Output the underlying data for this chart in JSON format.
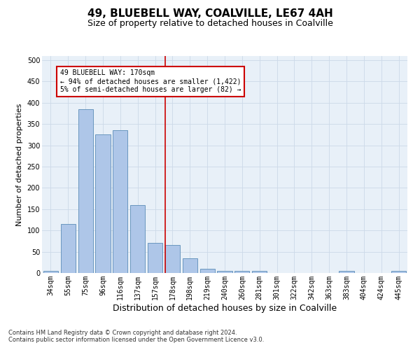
{
  "title": "49, BLUEBELL WAY, COALVILLE, LE67 4AH",
  "subtitle": "Size of property relative to detached houses in Coalville",
  "xlabel": "Distribution of detached houses by size in Coalville",
  "ylabel": "Number of detached properties",
  "categories": [
    "34sqm",
    "55sqm",
    "75sqm",
    "96sqm",
    "116sqm",
    "137sqm",
    "157sqm",
    "178sqm",
    "198sqm",
    "219sqm",
    "240sqm",
    "260sqm",
    "281sqm",
    "301sqm",
    "322sqm",
    "342sqm",
    "363sqm",
    "383sqm",
    "404sqm",
    "424sqm",
    "445sqm"
  ],
  "values": [
    5,
    115,
    385,
    325,
    335,
    160,
    70,
    65,
    35,
    10,
    5,
    5,
    5,
    0,
    0,
    0,
    0,
    5,
    0,
    0,
    5
  ],
  "bar_color": "#aec6e8",
  "bar_edge_color": "#5b8db8",
  "vline_x_index": 7,
  "vline_color": "#cc0000",
  "annotation_line1": "49 BLUEBELL WAY: 170sqm",
  "annotation_line2": "← 94% of detached houses are smaller (1,422)",
  "annotation_line3": "5% of semi-detached houses are larger (82) →",
  "annotation_box_color": "#cc0000",
  "annotation_bg_color": "#ffffff",
  "grid_color": "#ccd9e8",
  "background_color": "#e8f0f8",
  "ylim": [
    0,
    510
  ],
  "yticks": [
    0,
    50,
    100,
    150,
    200,
    250,
    300,
    350,
    400,
    450,
    500
  ],
  "footnote": "Contains HM Land Registry data © Crown copyright and database right 2024.\nContains public sector information licensed under the Open Government Licence v3.0.",
  "title_fontsize": 11,
  "subtitle_fontsize": 9,
  "xlabel_fontsize": 9,
  "ylabel_fontsize": 8,
  "tick_fontsize": 7,
  "annot_fontsize": 7
}
